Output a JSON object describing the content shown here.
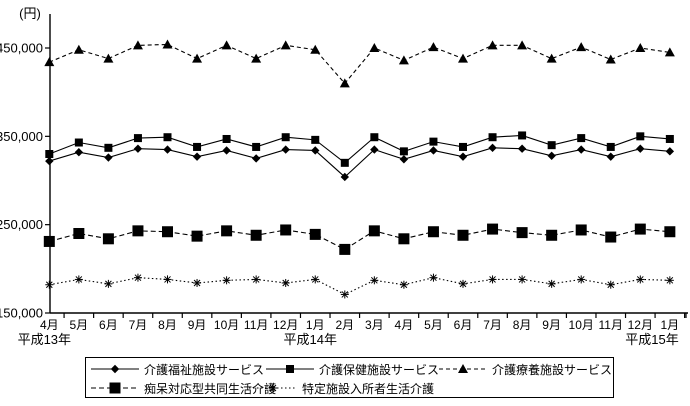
{
  "chart_data": {
    "type": "line",
    "title": "",
    "unit_label": "(円)",
    "background": "#ffffff",
    "line_color": "#000000",
    "grid": false,
    "ylim": [
      150000,
      485000
    ],
    "y_ticks": [
      450000,
      350000,
      250000,
      150000
    ],
    "y_tick_labels": [
      "450,000",
      "350,000",
      "250,000",
      "150,000"
    ],
    "x_labels": [
      "4月",
      "5月",
      "6月",
      "7月",
      "8月",
      "9月",
      "10月",
      "11月",
      "12月",
      "1月",
      "2月",
      "3月",
      "4月",
      "5月",
      "6月",
      "7月",
      "8月",
      "9月",
      "10月",
      "11月",
      "12月",
      "1月"
    ],
    "era_labels": [
      {
        "label": "平成13年",
        "month_index": 0
      },
      {
        "label": "平成14年",
        "month_index": 9
      },
      {
        "label": "平成15年",
        "month_index": 21
      }
    ],
    "legend_position": "bottom",
    "legend_border": true,
    "series": [
      {
        "name": "介護福祉施設サービス",
        "marker": "diamond",
        "line": "solid",
        "values": [
          322000,
          332000,
          326000,
          336000,
          335000,
          327000,
          334000,
          325000,
          335000,
          334000,
          304000,
          335000,
          324000,
          334000,
          327000,
          337000,
          336000,
          328000,
          335000,
          327000,
          336000,
          333000
        ]
      },
      {
        "name": "介護保健施設サービス",
        "marker": "square",
        "line": "solid",
        "values": [
          330000,
          343000,
          337000,
          348000,
          349000,
          338000,
          347000,
          338000,
          349000,
          346000,
          320000,
          349000,
          333000,
          344000,
          338000,
          349000,
          351000,
          340000,
          348000,
          338000,
          350000,
          347000
        ]
      },
      {
        "name": "介護療養施設サービス",
        "marker": "triangle",
        "line": "dashed",
        "values": [
          434000,
          448000,
          438000,
          453000,
          454000,
          438000,
          453000,
          438000,
          453000,
          448000,
          410000,
          450000,
          436000,
          451000,
          438000,
          453000,
          453000,
          438000,
          451000,
          437000,
          450000,
          445000
        ]
      },
      {
        "name": "痴呆対応型共同生活介護",
        "marker": "square-large",
        "line": "longdash",
        "values": [
          231000,
          240000,
          234000,
          243000,
          242000,
          237000,
          243000,
          238000,
          244000,
          239000,
          222000,
          243000,
          234000,
          242000,
          238000,
          245000,
          241000,
          238000,
          244000,
          236000,
          245000,
          242000
        ]
      },
      {
        "name": "特定施設入所者生活介護",
        "marker": "asterisk",
        "line": "dotted",
        "values": [
          182000,
          188000,
          183000,
          190000,
          188000,
          184000,
          187000,
          188000,
          184000,
          188000,
          171000,
          187000,
          182000,
          190000,
          183000,
          188000,
          188000,
          183000,
          188000,
          182000,
          188000,
          187000
        ]
      }
    ]
  }
}
